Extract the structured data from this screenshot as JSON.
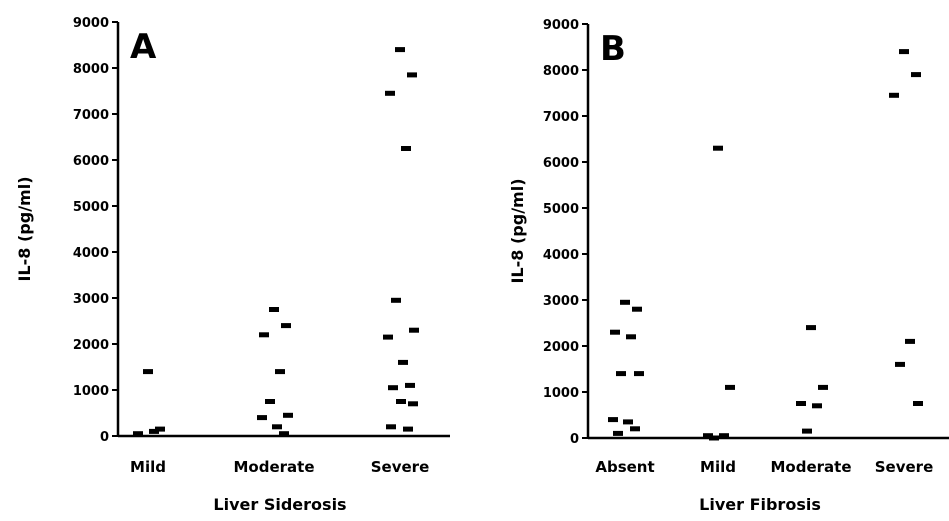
{
  "chart_data": [
    {
      "type": "dot",
      "title": "A",
      "ylabel": "IL-8 (pg/ml)",
      "xlabel": "Liver Siderosis",
      "categories": [
        "Mild",
        "Moderate",
        "Severe"
      ],
      "values": [
        [
          1400,
          150,
          50,
          100
        ],
        [
          2750,
          2400,
          2200,
          1400,
          750,
          450,
          400,
          200,
          50
        ],
        [
          8400,
          7850,
          7450,
          6250,
          2950,
          2300,
          2150,
          1600,
          1100,
          1050,
          750,
          700,
          200,
          150
        ]
      ],
      "ylim": [
        0,
        9000
      ],
      "yticks": [
        0,
        1000,
        2000,
        3000,
        4000,
        5000,
        6000,
        7000,
        8000,
        9000
      ],
      "color": "#000000"
    },
    {
      "type": "dot",
      "title": "B",
      "ylabel": "IL-8 (pg/ml)",
      "xlabel": "Liver Fibrosis",
      "categories": [
        "Absent",
        "Mild",
        "Moderate",
        "Severe"
      ],
      "values": [
        [
          2950,
          2800,
          2300,
          2200,
          1400,
          1400,
          400,
          350,
          200,
          100
        ],
        [
          6300,
          1100,
          50,
          50,
          0
        ],
        [
          2400,
          1100,
          750,
          700,
          150
        ],
        [
          8400,
          7900,
          7450,
          2100,
          1600,
          750
        ]
      ],
      "ylim": [
        0,
        9000
      ],
      "yticks": [
        0,
        1000,
        2000,
        3000,
        4000,
        5000,
        6000,
        7000,
        8000,
        9000
      ],
      "color": "#000000"
    }
  ]
}
